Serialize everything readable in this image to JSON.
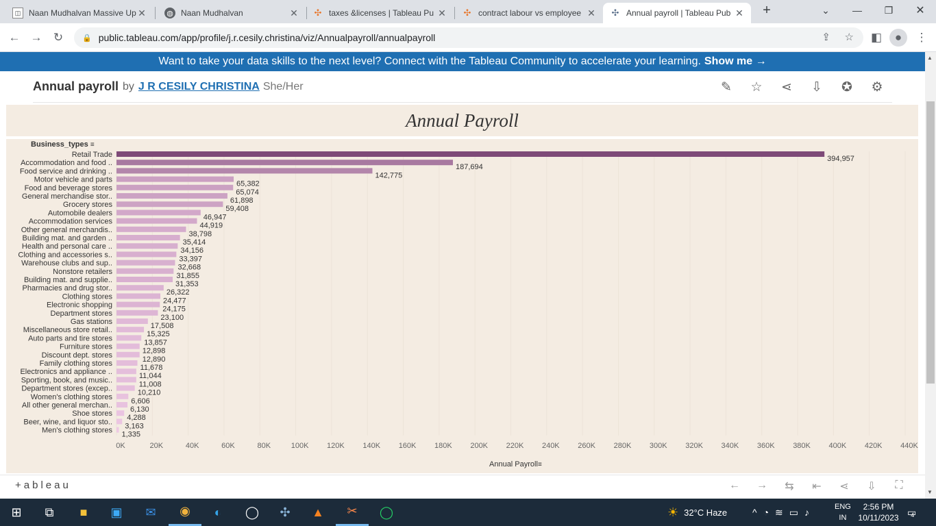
{
  "browser": {
    "tabs": [
      {
        "title": "Naan Mudhalvan Massive Up",
        "icon": "naan-mudhalvan-icon",
        "active": false
      },
      {
        "title": "Naan Mudhalvan",
        "icon": "globe-icon",
        "active": false
      },
      {
        "title": "taxes &licenses | Tableau Pu",
        "icon": "tableau-icon",
        "active": false
      },
      {
        "title": "contract labour vs employee",
        "icon": "tableau-icon",
        "active": false
      },
      {
        "title": "Annual payroll | Tableau Pub",
        "icon": "tableau-icon",
        "active": true
      }
    ],
    "new_tab": "+",
    "url": "public.tableau.com/app/profile/j.r.cesily.christina/viz/Annualpayroll/annualpayroll"
  },
  "banner": {
    "text": "Want to take your data skills to the next level? Connect with the Tableau Community to accelerate your learning.",
    "link": "Show me →"
  },
  "viz_header": {
    "title": "Annual payroll",
    "by": "by",
    "author": "J R CESILY CHRISTINA",
    "pronouns": "She/Her"
  },
  "dashboard": {
    "title": "Annual Payroll",
    "row_header": "Business_types"
  },
  "chart_data": {
    "type": "bar",
    "orientation": "horizontal",
    "categories": [
      "Retail Trade",
      "Accommodation and food ..",
      "Food service and drinking ..",
      "Motor vehicle and parts",
      "Food and beverage stores",
      "General merchandise stor..",
      "Grocery stores",
      "Automobile dealers",
      "Accommodation services",
      "Other general merchandis..",
      "Building mat. and garden ..",
      "Health and personal care ..",
      "Clothing and accessories s..",
      "Warehouse clubs and sup..",
      "Nonstore retailers",
      "Building mat. and supplie..",
      "Pharmacies and drug stor..",
      "Clothing stores",
      "Electronic shopping",
      "Department stores",
      "Gas stations",
      "Miscellaneous store retail..",
      "Auto parts and tire stores",
      "Furniture stores",
      "Discount dept. stores",
      "Family clothing stores",
      "Electronics and appliance ..",
      "Sporting, book, and music..",
      "Department stores (excep..",
      "Women's clothing stores",
      "All other general merchan..",
      "Shoe stores",
      "Beer, wine, and liquor sto..",
      "Men's clothing stores"
    ],
    "values": [
      394957,
      187694,
      142775,
      65382,
      65074,
      61898,
      59408,
      46947,
      44919,
      38798,
      35414,
      34156,
      33397,
      32668,
      31855,
      31353,
      26322,
      24477,
      24175,
      23100,
      17508,
      15325,
      13857,
      12898,
      12890,
      11678,
      11044,
      11008,
      10210,
      6606,
      6130,
      4288,
      3163,
      1335
    ],
    "labels": [
      "394,957",
      "187,694",
      "142,775",
      "65,382",
      "65,074",
      "61,898",
      "59,408",
      "46,947",
      "44,919",
      "38,798",
      "35,414",
      "34,156",
      "33,397",
      "32,668",
      "31,855",
      "31,353",
      "26,322",
      "24,477",
      "24,175",
      "23,100",
      "17,508",
      "15,325",
      "13,857",
      "12,898",
      "12,890",
      "11,678",
      "11,044",
      "11,008",
      "10,210",
      "6,606",
      "6,130",
      "4,288",
      "3,163",
      "1,335"
    ],
    "xlim": [
      0,
      440000
    ],
    "xticks": [
      "0K",
      "20K",
      "40K",
      "60K",
      "80K",
      "100K",
      "120K",
      "140K",
      "160K",
      "180K",
      "200K",
      "220K",
      "240K",
      "260K",
      "280K",
      "300K",
      "320K",
      "340K",
      "360K",
      "380K",
      "400K",
      "420K",
      "440K"
    ],
    "xlabel": "Annual Payroll",
    "colors": {
      "max": "#7e4a78",
      "min": "#f2cde8"
    }
  },
  "footer": {
    "logo": "+ableau"
  },
  "taskbar": {
    "weather": "32°C  Haze",
    "lang": "ENG",
    "region": "IN",
    "time": "2:56 PM",
    "date": "10/11/2023",
    "notifications": "4"
  }
}
